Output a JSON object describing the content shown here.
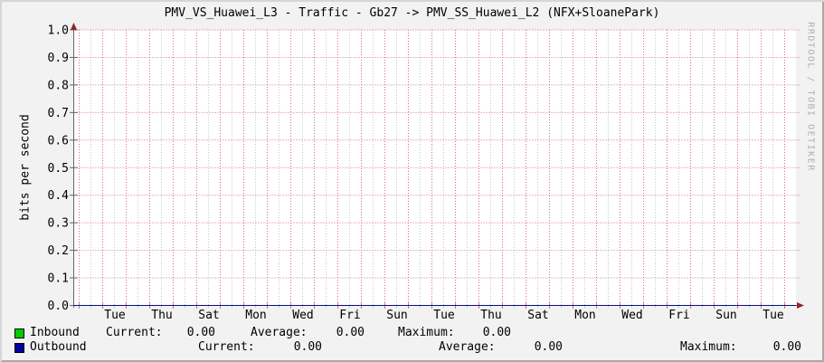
{
  "title": "PMV_VS_Huawei_L3 - Traffic - Gb27 -> PMV_SS_Huawei_L2 (NFX+SloanePark)",
  "watermark": "RRDTOOL / TOBI OETIKER",
  "chart_data": {
    "type": "line",
    "title": "PMV_VS_Huawei_L3 - Traffic - Gb27 -> PMV_SS_Huawei_L2 (NFX+SloanePark)",
    "xlabel": "",
    "ylabel": "bits per second",
    "ylim": [
      0.0,
      1.0
    ],
    "grid": true,
    "legend_position": "bottom-left",
    "y_ticks": [
      "1.0",
      "0.9",
      "0.8",
      "0.7",
      "0.6",
      "0.5",
      "0.4",
      "0.3",
      "0.2",
      "0.1",
      "0.0"
    ],
    "x_ticks": [
      "Tue",
      "Thu",
      "Sat",
      "Mon",
      "Wed",
      "Fri",
      "Sun",
      "Tue",
      "Thu",
      "Sat",
      "Mon",
      "Wed",
      "Fri",
      "Sun",
      "Tue"
    ],
    "series": [
      {
        "name": "Inbound",
        "color": "#00cc00",
        "values": [
          0,
          0,
          0,
          0,
          0,
          0,
          0,
          0,
          0,
          0,
          0,
          0,
          0,
          0,
          0
        ],
        "current": 0.0,
        "average": 0.0,
        "maximum": 0.0
      },
      {
        "name": "Outbound",
        "color": "#0000a0",
        "values": [
          0,
          0,
          0,
          0,
          0,
          0,
          0,
          0,
          0,
          0,
          0,
          0,
          0,
          0,
          0
        ],
        "current": 0.0,
        "average": 0.0,
        "maximum": 0.0
      }
    ],
    "colors": {
      "plot_background": "#ffffff",
      "canvas_background": "#f2f2f2",
      "major_grid": "#d87070",
      "minor_grid": "#c6c6c6",
      "axis": "#666666",
      "arrow": "#992222"
    }
  },
  "legend": {
    "rows": [
      {
        "label": "Inbound",
        "swatch_color": "#00cc00",
        "fields": [
          {
            "k": "Current:",
            "v": "0.00"
          },
          {
            "k": "Average:",
            "v": "0.00"
          },
          {
            "k": "Maximum:",
            "v": "0.00"
          }
        ]
      },
      {
        "label": "Outbound",
        "swatch_color": "#0000a0",
        "fields": [
          {
            "k": "Current:",
            "v": "0.00"
          },
          {
            "k": "Average:",
            "v": "0.00"
          },
          {
            "k": "Maximum:",
            "v": "0.00"
          }
        ]
      }
    ]
  }
}
